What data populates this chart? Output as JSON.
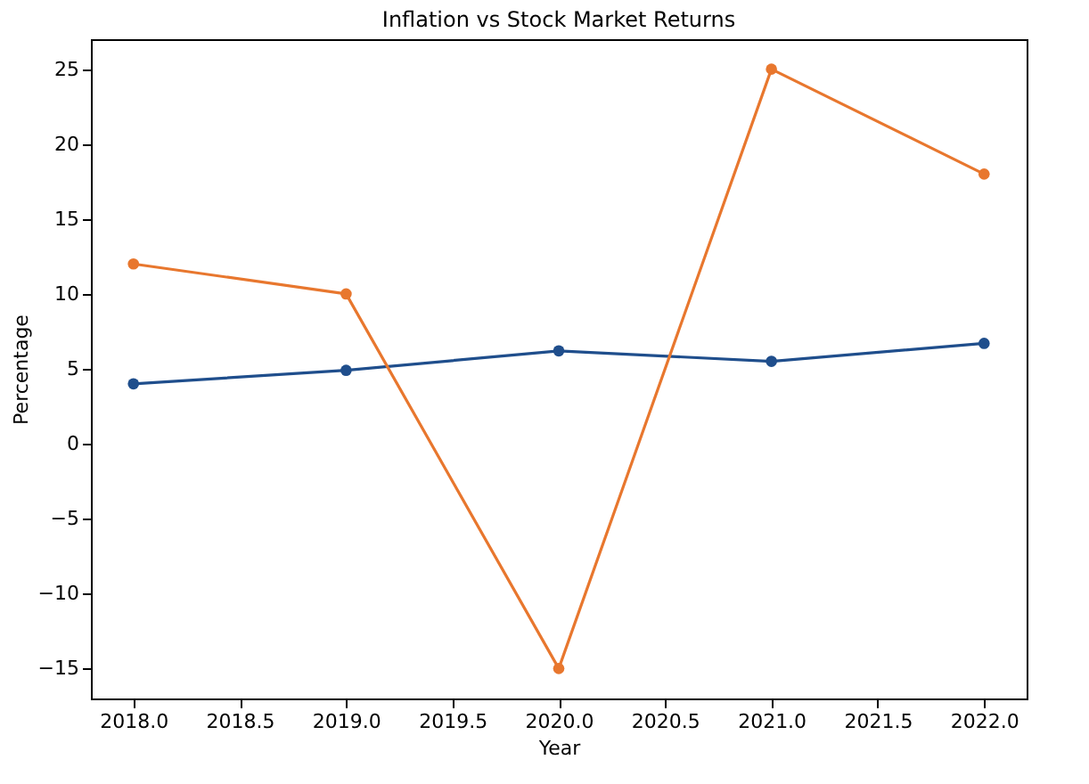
{
  "chart_data": {
    "type": "line",
    "title": "Inflation vs Stock Market Returns",
    "xlabel": "Year",
    "ylabel": "Percentage",
    "x": [
      2018,
      2019,
      2020,
      2021,
      2022
    ],
    "series": [
      {
        "color": "#1f4e8c",
        "values": [
          4.0,
          4.9,
          6.2,
          5.5,
          6.7
        ]
      },
      {
        "color": "#e8772e",
        "values": [
          12,
          10,
          -15,
          25,
          18
        ]
      }
    ],
    "xlim": [
      2017.8,
      2022.2
    ],
    "xticks": [
      {
        "value": 2018,
        "label": "2018.0"
      },
      {
        "value": 2018.5,
        "label": "2018.5"
      },
      {
        "value": 2019,
        "label": "2019.0"
      },
      {
        "value": 2019.5,
        "label": "2019.5"
      },
      {
        "value": 2020,
        "label": "2020.0"
      },
      {
        "value": 2020.5,
        "label": "2020.5"
      },
      {
        "value": 2021,
        "label": "2021.0"
      },
      {
        "value": 2021.5,
        "label": "2021.5"
      },
      {
        "value": 2022,
        "label": "2022.0"
      }
    ],
    "ylim": [
      -17,
      27
    ],
    "yticks": [
      -15,
      -10,
      -5,
      0,
      5,
      10,
      15,
      20,
      25
    ],
    "grid": false,
    "marker": "circle",
    "line_style": "solid"
  }
}
